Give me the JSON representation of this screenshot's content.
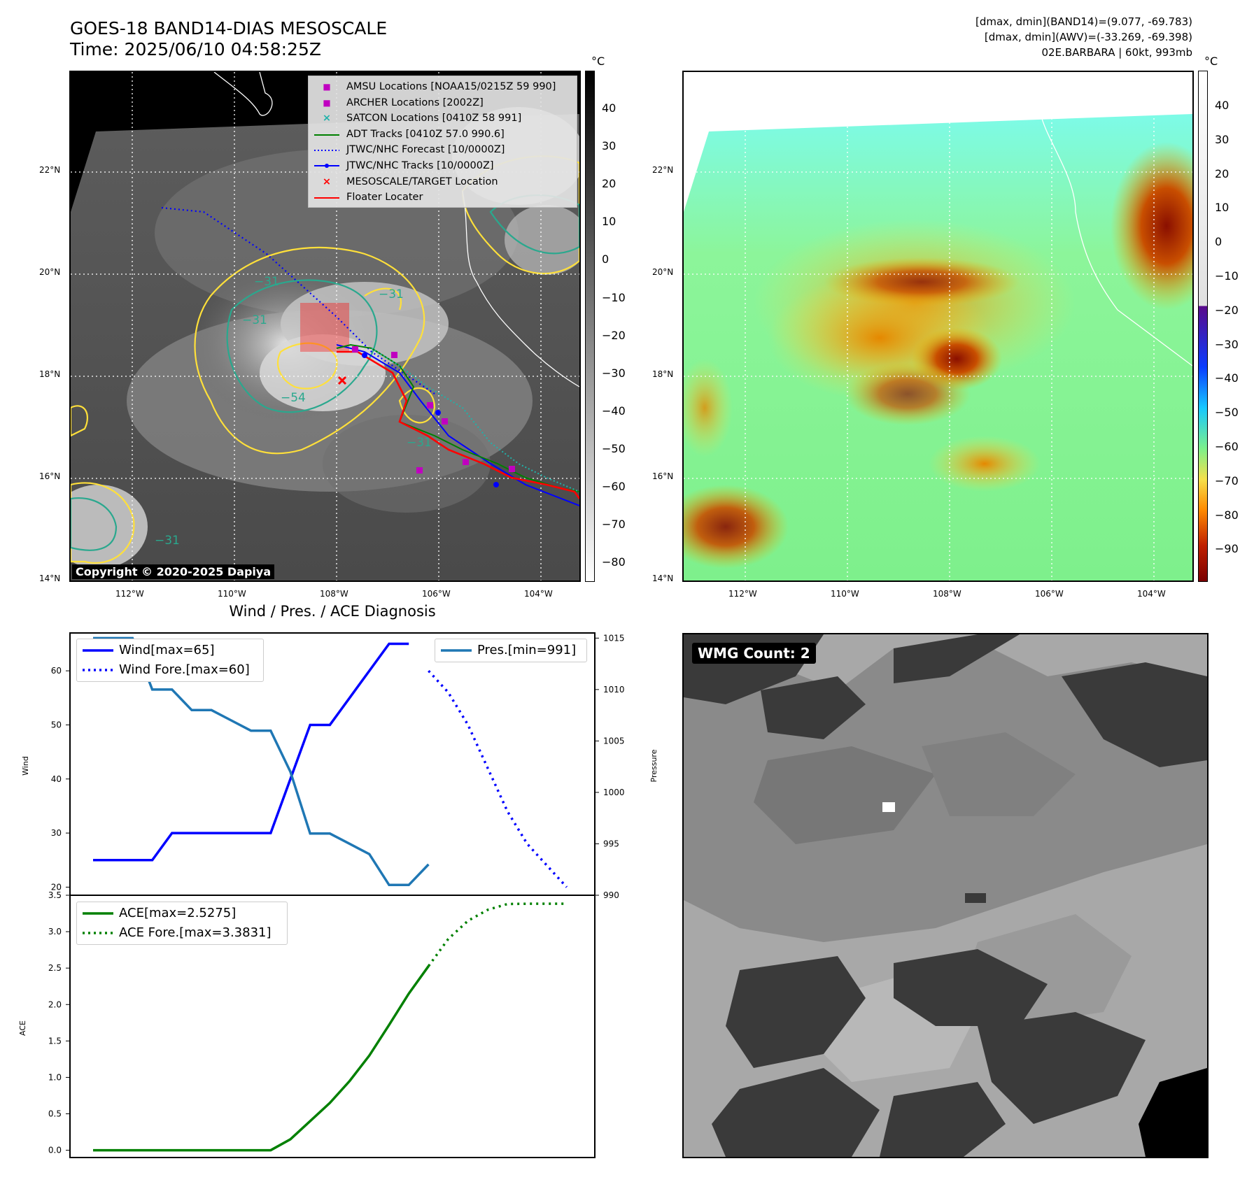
{
  "header": {
    "title_line1": "GOES-18 BAND14-DIAS MESOSCALE",
    "title_line2": "Time: 2025/06/10 04:58:25Z",
    "info_line1": "[dmax, dmin](BAND14)=(9.077, -69.783)",
    "info_line2": "[dmax, dmin](AWV)=(-33.269, -69.398)",
    "info_line3": "02E.BARBARA | 60kt, 993mb"
  },
  "maps": {
    "lat_labels": [
      "22°N",
      "20°N",
      "18°N",
      "16°N",
      "14°N"
    ],
    "lon_labels": [
      "112°W",
      "110°W",
      "108°W",
      "106°W",
      "104°W"
    ],
    "unit": "°C",
    "ir_colorbar_ticks": [
      "40",
      "30",
      "20",
      "10",
      "0",
      "−10",
      "−20",
      "−30",
      "−40",
      "−50",
      "−60",
      "−70",
      "−80"
    ],
    "wv_colorbar_ticks": [
      "40",
      "30",
      "20",
      "10",
      "0",
      "−10",
      "−20",
      "−30",
      "−40",
      "−50",
      "−60",
      "−70",
      "−80",
      "−90"
    ],
    "contour_labels": [
      "−31",
      "−54",
      "−31",
      "−31",
      "−31",
      "−31"
    ],
    "copyright": "Copyright © 2020-2025 Dapiya",
    "legend": [
      {
        "label": "AMSU Locations [NOAA15/0215Z 59 990]",
        "symbol": "square",
        "color": "#c000c0"
      },
      {
        "label": "ARCHER Locations [2002Z]",
        "symbol": "square",
        "color": "#c000c0"
      },
      {
        "label": "SATCON Locations [0410Z 58 991]",
        "symbol": "x",
        "color": "#20b2aa"
      },
      {
        "label": "ADT Tracks [0410Z 57.0 990.6]",
        "symbol": "line",
        "color": "#008000"
      },
      {
        "label": "JTWC/NHC Forecast [10/0000Z]",
        "symbol": "dotted",
        "color": "#0000ff"
      },
      {
        "label": "JTWC/NHC Tracks [10/0000Z]",
        "symbol": "line-dot",
        "color": "#0000ff"
      },
      {
        "label": "MESOSCALE/TARGET Location",
        "symbol": "x",
        "color": "#ff0000"
      },
      {
        "label": "Floater Locater",
        "symbol": "line",
        "color": "#ff0000"
      }
    ]
  },
  "diagnosis": {
    "title": "Wind / Pres. / ACE Diagnosis",
    "wind_ylabel": "Wind",
    "pres_ylabel": "Pressure",
    "ace_ylabel": "ACE",
    "wind_ticks": [
      "60",
      "50",
      "40",
      "30",
      "20"
    ],
    "pres_ticks": [
      "1015",
      "1010",
      "1005",
      "1000",
      "995",
      "990"
    ],
    "ace_ticks": [
      "3.5",
      "3.0",
      "2.5",
      "2.0",
      "1.5",
      "1.0",
      "0.5",
      "0.0"
    ],
    "legend_wind": "Wind[max=65]",
    "legend_wind_fore": "Wind Fore.[max=60]",
    "legend_pres": "Pres.[min=991]",
    "legend_ace": "ACE[max=2.5275]",
    "legend_ace_fore": "ACE Fore.[max=3.3831]",
    "wmg_label": "WMG Count: 2"
  },
  "chart_data": [
    {
      "type": "line",
      "title": "Wind / Pres. / ACE Diagnosis",
      "ylabel": "Wind",
      "ylim": [
        18.5,
        67
      ],
      "x": [
        0,
        1,
        2,
        3,
        4,
        5,
        6,
        7,
        8,
        9,
        10,
        11,
        12,
        13,
        14,
        15,
        16,
        17,
        18,
        19,
        20,
        21,
        22,
        23,
        24
      ],
      "series": [
        {
          "name": "Wind[max=65]",
          "x": [
            0,
            1,
            2,
            3,
            4,
            5,
            6,
            7,
            8,
            9,
            10,
            11,
            12,
            13,
            14,
            15,
            16
          ],
          "values": [
            25,
            25,
            25,
            25,
            30,
            30,
            30,
            30,
            30,
            30,
            40,
            50,
            50,
            55,
            60,
            65,
            65
          ],
          "color": "#0000ff"
        },
        {
          "name": "Wind Fore.[max=60]",
          "x": [
            17,
            18,
            19,
            20,
            21,
            22,
            23,
            24
          ],
          "values": [
            60,
            56,
            50,
            42,
            34,
            28,
            24,
            20
          ],
          "color": "#0000ff",
          "style": "dotted"
        }
      ]
    },
    {
      "type": "line",
      "ylabel": "Pressure",
      "ylim": [
        990,
        1015.5
      ],
      "series": [
        {
          "name": "Pres.[min=991]",
          "x": [
            0,
            1,
            2,
            3,
            4,
            5,
            6,
            7,
            8,
            9,
            10,
            11,
            12,
            13,
            14,
            15,
            16,
            17
          ],
          "values": [
            1015,
            1015,
            1015,
            1010,
            1010,
            1008,
            1008,
            1007,
            1006,
            1006,
            1002,
            996,
            996,
            995,
            994,
            991,
            991,
            993
          ],
          "color": "#1f77b4"
        }
      ]
    },
    {
      "type": "line",
      "ylabel": "ACE",
      "ylim": [
        -0.1,
        3.5
      ],
      "series": [
        {
          "name": "ACE[max=2.5275]",
          "x": [
            0,
            1,
            2,
            3,
            4,
            5,
            6,
            7,
            8,
            9,
            10,
            11,
            12,
            13,
            14,
            15,
            16,
            17
          ],
          "values": [
            0,
            0,
            0,
            0,
            0,
            0,
            0,
            0,
            0,
            0,
            0.15,
            0.4,
            0.65,
            0.95,
            1.3,
            1.72,
            2.15,
            2.5275
          ],
          "color": "#008000"
        },
        {
          "name": "ACE Fore.[max=3.3831]",
          "x": [
            17,
            18,
            19,
            20,
            21,
            22,
            23,
            24
          ],
          "values": [
            2.5275,
            2.9,
            3.15,
            3.3,
            3.38,
            3.3831,
            3.3831,
            3.3831
          ],
          "color": "#008000",
          "style": "dotted"
        }
      ]
    }
  ]
}
